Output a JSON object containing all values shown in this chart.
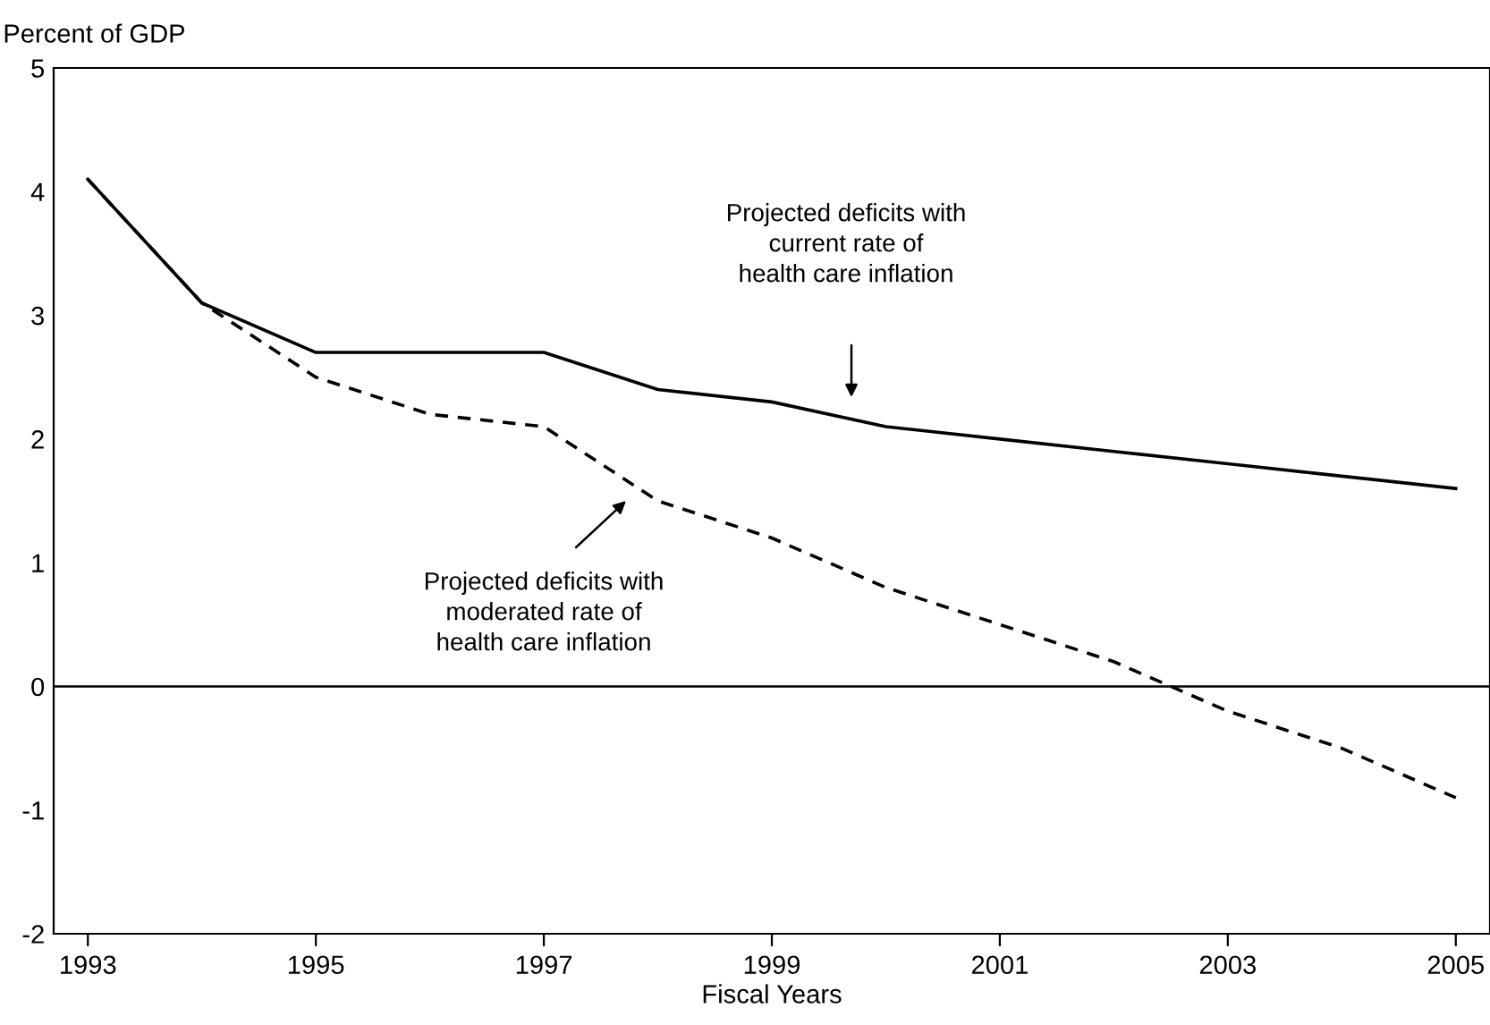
{
  "chart_data": {
    "type": "line",
    "ylabel": "Percent of GDP",
    "xlabel": "Fiscal Years",
    "x": [
      1993,
      1994,
      1995,
      1996,
      1997,
      1998,
      1999,
      2000,
      2001,
      2002,
      2003,
      2004,
      2005
    ],
    "series": [
      {
        "color": "#000000",
        "line_style": "solid",
        "values": [
          4.1,
          3.1,
          2.7,
          2.7,
          2.7,
          2.4,
          2.3,
          2.1,
          2.0,
          1.9,
          1.8,
          1.7,
          1.6
        ]
      },
      {
        "color": "#000000",
        "line_style": "dashed",
        "values": [
          4.1,
          3.1,
          2.5,
          2.2,
          2.1,
          1.5,
          1.2,
          0.8,
          0.5,
          0.2,
          -0.2,
          -0.5,
          -0.9
        ]
      }
    ],
    "xlim": [
      1992.7,
      2005.3
    ],
    "xticks": [
      1993,
      1995,
      1997,
      1999,
      2001,
      2003,
      2005
    ],
    "ylim": [
      -2,
      5
    ],
    "yticks": [
      -2,
      -1,
      0,
      1,
      2,
      3,
      4,
      5
    ],
    "ref_lines": [
      {
        "axis": "y",
        "value": 0,
        "color": "#000000"
      }
    ],
    "annotations": [
      "Projected deficits with\ncurrent rate of\nhealth care inflation",
      "Projected deficits with\nmoderated rate of\nhealth care inflation"
    ],
    "grid": false,
    "legend": false,
    "marker": "none"
  }
}
